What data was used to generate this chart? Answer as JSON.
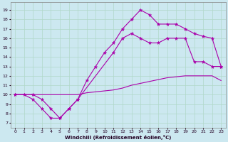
{
  "xlabel": "Windchill (Refroidissement éolien,°C)",
  "bg_color": "#cce8f0",
  "grid_color": "#b0d8c8",
  "line_color": "#aa00aa",
  "ylim": [
    6.5,
    19.8
  ],
  "xlim": [
    -0.5,
    23.5
  ],
  "yticks": [
    7,
    8,
    9,
    10,
    11,
    12,
    13,
    14,
    15,
    16,
    17,
    18,
    19
  ],
  "xticks": [
    0,
    1,
    2,
    3,
    4,
    5,
    6,
    7,
    8,
    9,
    10,
    11,
    12,
    13,
    14,
    15,
    16,
    17,
    18,
    19,
    20,
    21,
    22,
    23
  ],
  "line1_x": [
    0,
    1,
    2,
    3,
    4,
    5,
    6,
    7,
    8,
    9,
    10,
    11,
    12,
    13,
    14,
    15,
    16,
    17,
    18,
    19,
    20,
    21,
    22,
    23
  ],
  "line1_y": [
    10,
    10,
    9.5,
    8.5,
    7.5,
    7.5,
    8.5,
    9.5,
    11.5,
    13.0,
    14.5,
    15.5,
    17.0,
    18.0,
    19.0,
    18.5,
    17.5,
    17.5,
    17.5,
    17.0,
    16.5,
    16.2,
    16.0,
    13.0
  ],
  "line2_x": [
    0,
    1,
    2,
    3,
    4,
    5,
    6,
    7,
    8,
    9,
    10,
    11,
    12,
    13,
    14,
    15,
    16,
    17,
    18,
    19,
    20,
    21,
    22,
    23
  ],
  "line2_y": [
    10,
    10,
    10,
    10,
    10,
    10,
    10,
    10,
    10.2,
    10.3,
    10.4,
    10.5,
    10.7,
    11.0,
    11.2,
    11.4,
    11.6,
    11.8,
    11.9,
    12.0,
    12.0,
    12.0,
    12.0,
    11.5
  ],
  "line3_x": [
    0,
    2,
    3,
    4,
    5,
    6,
    7,
    11,
    12,
    13,
    14,
    15,
    16,
    17,
    18,
    19,
    20,
    21,
    22,
    23
  ],
  "line3_y": [
    10,
    10,
    9.5,
    8.5,
    7.5,
    8.5,
    9.5,
    14.5,
    16.0,
    16.5,
    16.0,
    15.5,
    15.5,
    16.0,
    16.0,
    16.0,
    13.5,
    13.5,
    13.0,
    13.0
  ]
}
